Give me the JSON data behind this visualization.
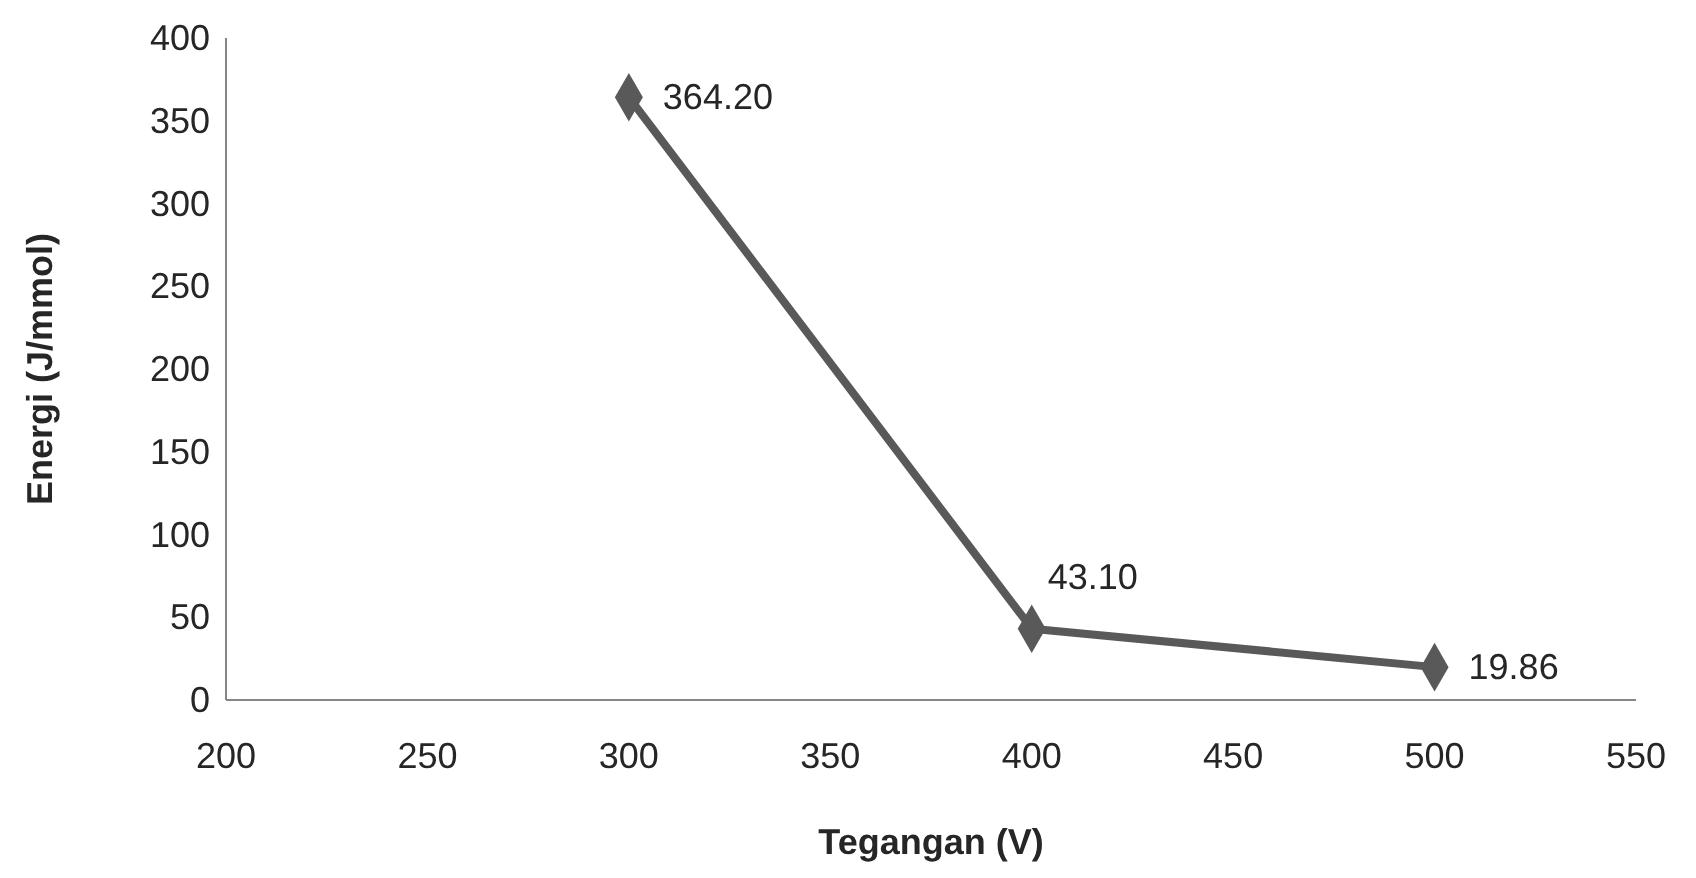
{
  "chart_data": {
    "type": "line",
    "xlabel": "Tegangan (V)",
    "ylabel": "Energi (J/mmol)",
    "x": [
      300,
      400,
      500
    ],
    "series": [
      {
        "color": "#595959",
        "values": [
          364.2,
          43.1,
          19.86
        ],
        "value_labels": [
          "364.20",
          "43.10",
          "19.86"
        ]
      }
    ],
    "xlim": [
      200,
      550
    ],
    "xticks": [
      200,
      250,
      300,
      350,
      400,
      450,
      500,
      550
    ],
    "ylim": [
      0,
      400
    ],
    "yticks": [
      0,
      50,
      100,
      150,
      200,
      250,
      300,
      350,
      400
    ],
    "marker": "diamond",
    "line_style": "solid"
  }
}
